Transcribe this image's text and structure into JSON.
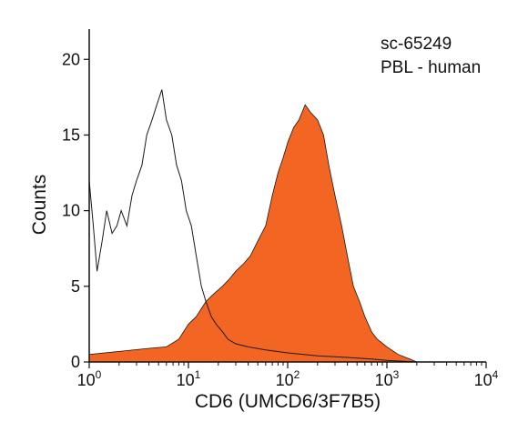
{
  "chart_data": {
    "type": "area",
    "title": "",
    "xlabel": "CD6 (UMCD6/3F7B5)",
    "ylabel": "Counts",
    "x_scale": "log",
    "xlim": [
      1,
      10000
    ],
    "ylim": [
      0,
      22
    ],
    "x_ticks": [
      {
        "value": 1,
        "base": "10",
        "exp": "0"
      },
      {
        "value": 10,
        "base": "10",
        "exp": "1"
      },
      {
        "value": 100,
        "base": "10",
        "exp": "2"
      },
      {
        "value": 1000,
        "base": "10",
        "exp": "3"
      },
      {
        "value": 10000,
        "base": "10",
        "exp": "4"
      }
    ],
    "y_ticks": [
      0,
      5,
      10,
      15,
      20
    ],
    "annotations": [
      "sc-65249",
      "PBL - human"
    ],
    "grid": false,
    "series": [
      {
        "style": "outline",
        "color": "#1a1a1a",
        "x": [
          1,
          1.1,
          1.2,
          1.35,
          1.5,
          1.7,
          1.9,
          2.1,
          2.4,
          2.7,
          3.0,
          3.4,
          3.8,
          4.3,
          4.8,
          5.4,
          6.0,
          6.8,
          7.6,
          8.5,
          9.5,
          10.7,
          12,
          13.5,
          15,
          17,
          19,
          22,
          25,
          30,
          40,
          60,
          100,
          200,
          400,
          700,
          1000,
          2000
        ],
        "y": [
          12,
          9,
          6,
          8,
          10,
          8.5,
          9,
          10,
          9,
          11,
          12,
          13,
          15,
          16,
          17,
          18,
          16,
          15,
          13,
          12,
          10,
          9,
          7,
          5,
          4,
          3,
          2.5,
          2,
          1.5,
          1.2,
          1,
          0.8,
          0.6,
          0.4,
          0.3,
          0.2,
          0.1,
          0
        ]
      },
      {
        "style": "filled",
        "color": "#f26522",
        "x": [
          1,
          2,
          4,
          6,
          8,
          10,
          12,
          15,
          18,
          22,
          26,
          30,
          36,
          42,
          50,
          60,
          70,
          80,
          90,
          100,
          115,
          130,
          150,
          170,
          200,
          230,
          260,
          300,
          350,
          400,
          460,
          530,
          600,
          700,
          800,
          1000,
          1300,
          1700,
          2000
        ],
        "y": [
          0.5,
          0.7,
          0.9,
          1,
          1.5,
          2.5,
          3,
          4,
          4.5,
          5,
          5.5,
          6,
          6.5,
          7,
          8,
          9,
          11,
          12.5,
          13.5,
          14.5,
          15.5,
          16,
          17,
          16.5,
          16,
          15,
          13,
          11,
          9,
          7,
          5,
          4,
          3,
          2,
          1.5,
          1,
          0.5,
          0.2,
          0
        ]
      }
    ]
  }
}
